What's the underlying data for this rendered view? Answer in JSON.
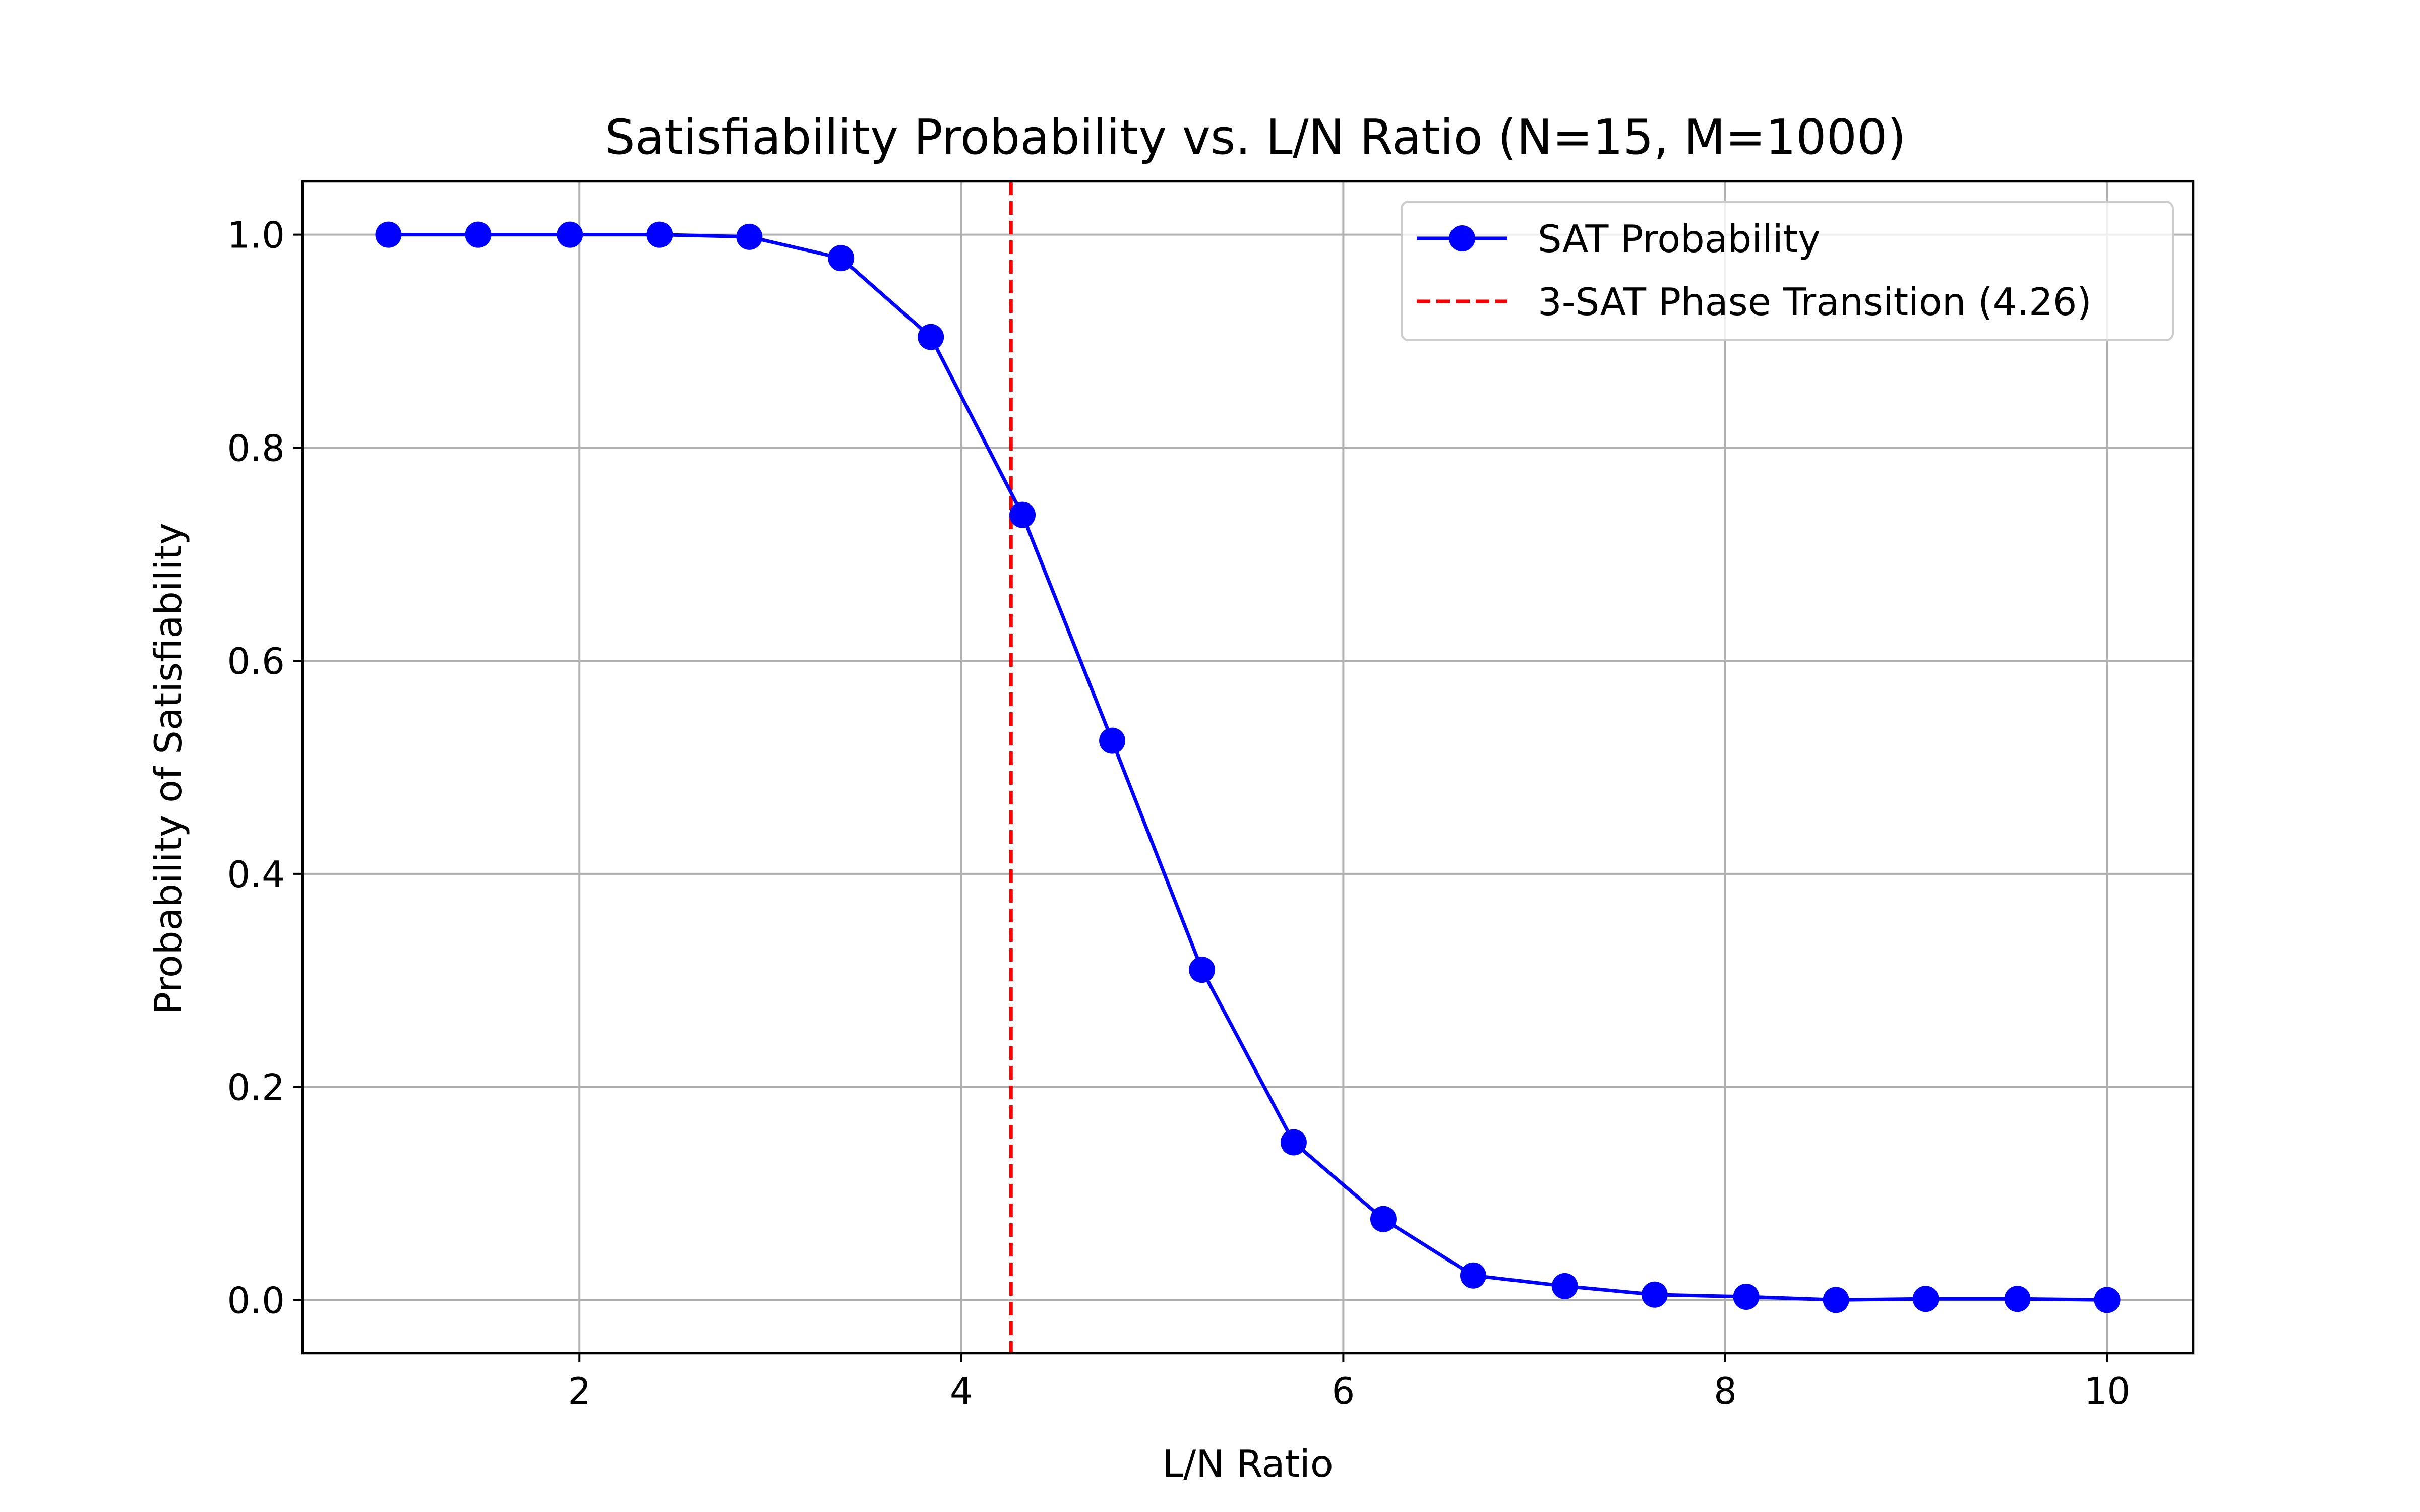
{
  "chart_data": {
    "type": "line",
    "title": "Satisfiability Probability vs. L/N Ratio (N=15, M=1000)",
    "xlabel": "L/N Ratio",
    "ylabel": "Probability of Satisfiability",
    "xlim": [
      0.55,
      10.45
    ],
    "ylim": [
      -0.05,
      1.05
    ],
    "xticks": [
      2,
      4,
      6,
      8,
      10
    ],
    "yticks": [
      0.0,
      0.2,
      0.4,
      0.6,
      0.8,
      1.0
    ],
    "xtick_labels": [
      "2",
      "4",
      "6",
      "8",
      "10"
    ],
    "ytick_labels": [
      "0.0",
      "0.2",
      "0.4",
      "0.6",
      "0.8",
      "1.0"
    ],
    "grid": true,
    "legend_position": "top-right",
    "series": [
      {
        "name": "SAT Probability",
        "color": "#0000ff",
        "marker": "circle",
        "x": [
          1.0,
          1.47,
          1.95,
          2.42,
          2.89,
          3.37,
          3.84,
          4.32,
          4.79,
          5.26,
          5.74,
          6.21,
          6.68,
          7.16,
          7.63,
          8.11,
          8.58,
          9.05,
          9.53,
          10.0
        ],
        "y": [
          1.0,
          1.0,
          1.0,
          1.0,
          0.998,
          0.978,
          0.904,
          0.737,
          0.525,
          0.31,
          0.148,
          0.076,
          0.023,
          0.013,
          0.005,
          0.003,
          0.0,
          0.001,
          0.001,
          0.0
        ]
      }
    ],
    "reference_lines": [
      {
        "name": "3-SAT Phase Transition (4.26)",
        "orientation": "vertical",
        "x": 4.26,
        "color": "#ff0000",
        "style": "dashed"
      }
    ]
  }
}
